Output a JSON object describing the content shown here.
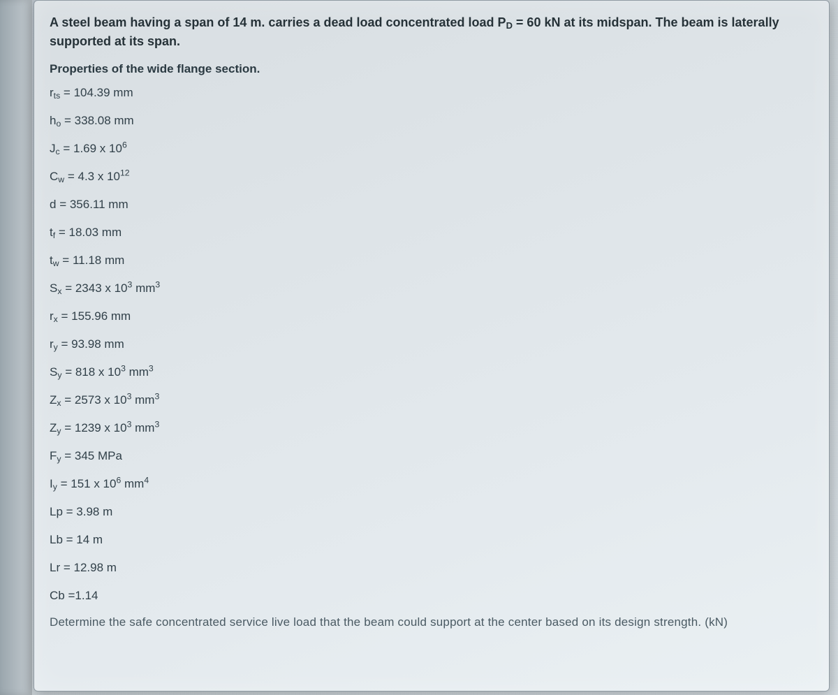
{
  "intro": "A steel beam having a span of 14 m. carries a dead load concentrated load P",
  "intro_sub": "D",
  "intro_rest": " = 60 kN at its midspan. The beam is laterally supported at its span.",
  "properties_header": "Properties of the wide flange section.",
  "props": [
    {
      "sym": "r",
      "sub": "ts",
      "eq": " = 104.39 mm"
    },
    {
      "sym": "h",
      "sub": "o",
      "eq": " = 338.08 mm"
    },
    {
      "sym": "J",
      "sub": "c",
      "eq": " = 1.69 x 10",
      "sup": "6"
    },
    {
      "sym": "C",
      "sub": "w",
      "eq": " = 4.3 x 10",
      "sup": "12"
    },
    {
      "sym": "d",
      "sub": "",
      "eq": " = 356.11 mm"
    },
    {
      "sym": "t",
      "sub": "f",
      "eq": " = 18.03 mm"
    },
    {
      "sym": "t",
      "sub": "w",
      "eq": " = 11.18 mm"
    },
    {
      "sym": "S",
      "sub": "x",
      "eq": " = 2343 x 10",
      "sup": "3",
      "tail": " mm",
      "tailsup": "3"
    },
    {
      "sym": "r",
      "sub": "x",
      "eq": " = 155.96 mm"
    },
    {
      "sym": "r",
      "sub": "y",
      "eq": " = 93.98 mm"
    },
    {
      "sym": "S",
      "sub": "y",
      "eq": " = 818 x 10",
      "sup": "3",
      "tail": " mm",
      "tailsup": "3"
    },
    {
      "sym": "Z",
      "sub": "x",
      "eq": " = 2573 x 10",
      "sup": "3",
      "tail": " mm",
      "tailsup": "3"
    },
    {
      "sym": "Z",
      "sub": "y",
      "eq": " = 1239 x 10",
      "sup": "3",
      "tail": " mm",
      "tailsup": "3"
    },
    {
      "sym": "F",
      "sub": "y",
      "eq": " = 345 MPa"
    },
    {
      "sym": "I",
      "sub": "y",
      "eq": " = 151 x 10",
      "sup": "6",
      "tail": " mm",
      "tailsup": "4"
    },
    {
      "sym": "Lp",
      "sub": "",
      "eq": " = 3.98 m"
    },
    {
      "sym": "Lb",
      "sub": "",
      "eq": " = 14 m"
    },
    {
      "sym": "Lr",
      "sub": "",
      "eq": " = 12.98 m"
    },
    {
      "sym": "Cb",
      "sub": "",
      "eq": " =1.14"
    }
  ],
  "question": "Determine the safe concentrated service live load that the beam could support at the center based on its design strength. (kN)"
}
